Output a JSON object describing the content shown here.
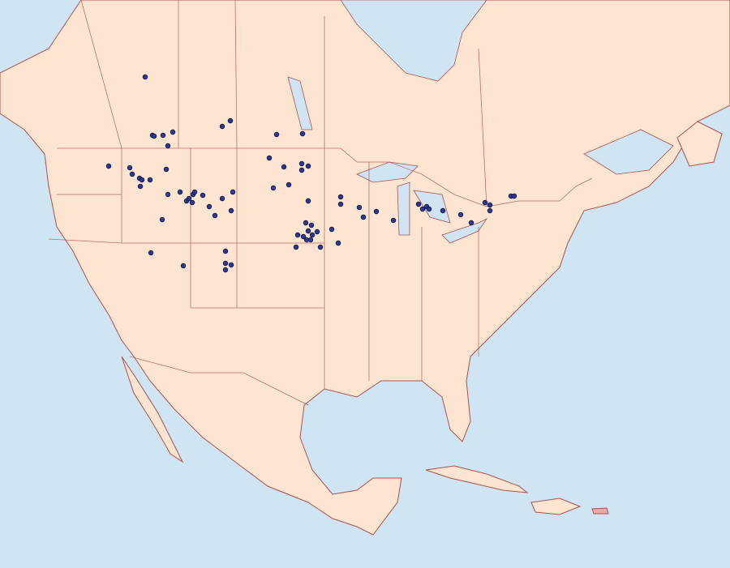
{
  "map": {
    "colors": {
      "ocean": "#cfe5f3",
      "land": "#fde5d2",
      "border": "#b0504f",
      "inner_border": "#e6a9a0",
      "lake": "#cfe5f3",
      "point_fill": "#2b3a9a",
      "point_stroke": "#0b0f33",
      "highlight_region": "#f2a7aa"
    },
    "point_marker": "filled-circle"
  }
}
